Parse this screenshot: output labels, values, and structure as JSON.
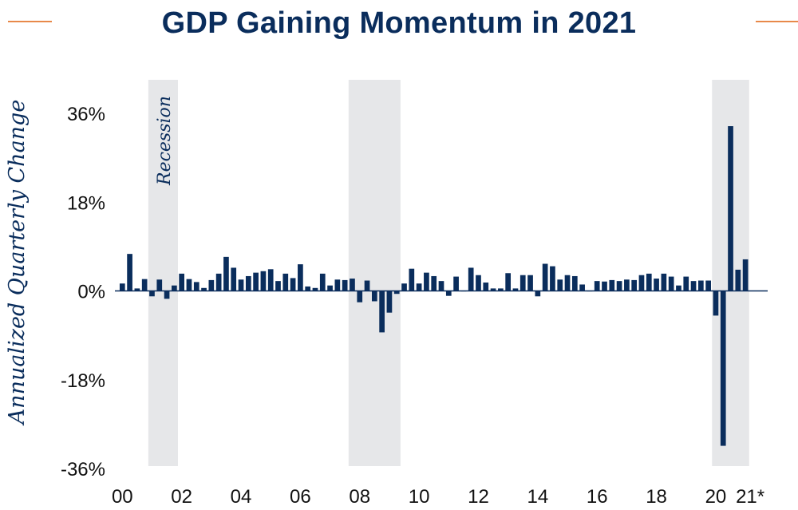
{
  "title": "GDP Gaining Momentum in 2021",
  "colors": {
    "accent_line": "#e8894a",
    "title": "#0a2d5c",
    "bar": "#0a2d5c",
    "recession_shade": "#e6e7e9"
  },
  "chart_data": {
    "type": "bar",
    "title": "GDP Gaining Momentum in 2021",
    "xlabel": "",
    "ylabel": "Annualized Quarterly Change",
    "ylim": [
      -36,
      36
    ],
    "y_ticks": [
      "36%",
      "18%",
      "0%",
      "-18%",
      "-36%"
    ],
    "y_tick_values": [
      36,
      18,
      0,
      -18,
      -36
    ],
    "x_ticks": [
      "00",
      "02",
      "04",
      "06",
      "08",
      "10",
      "12",
      "14",
      "16",
      "18",
      "20",
      "21*"
    ],
    "x_tick_positions": [
      2000.125,
      2002.125,
      2004.125,
      2006.125,
      2008.125,
      2010.125,
      2012.125,
      2014.125,
      2016.125,
      2018.125,
      2020.125,
      2021.125
    ],
    "x_range": [
      1999.875,
      2021.875
    ],
    "grid": false,
    "legend": "none",
    "annotation": "Recession",
    "recessions": [
      [
        2001.0,
        2002.0
      ],
      [
        2007.75,
        2009.5
      ],
      [
        2020.0,
        2021.25
      ]
    ],
    "start": "2000-Q1",
    "values": [
      1.5,
      7.5,
      0.5,
      2.4,
      -1.1,
      2.3,
      -1.6,
      1.1,
      3.5,
      2.4,
      1.8,
      0.6,
      2.2,
      3.5,
      6.9,
      4.7,
      2.3,
      3.0,
      3.7,
      4.0,
      4.4,
      2.0,
      3.5,
      2.6,
      5.4,
      0.9,
      0.6,
      3.5,
      1.1,
      2.3,
      2.2,
      2.5,
      -2.3,
      2.1,
      -2.1,
      -8.4,
      -4.4,
      -0.6,
      1.5,
      4.5,
      1.5,
      3.7,
      3.0,
      2.0,
      -1.0,
      2.9,
      -0.1,
      4.7,
      3.2,
      1.7,
      0.5,
      0.5,
      3.6,
      0.5,
      3.2,
      3.2,
      -1.1,
      5.5,
      5.0,
      2.3,
      3.2,
      3.0,
      1.3,
      0.0,
      2.0,
      1.9,
      2.2,
      2.0,
      2.3,
      2.2,
      3.2,
      3.5,
      2.5,
      3.5,
      2.9,
      1.1,
      2.9,
      2.0,
      2.1,
      2.1,
      -5.0,
      -31.4,
      33.4,
      4.3,
      6.4
    ]
  }
}
